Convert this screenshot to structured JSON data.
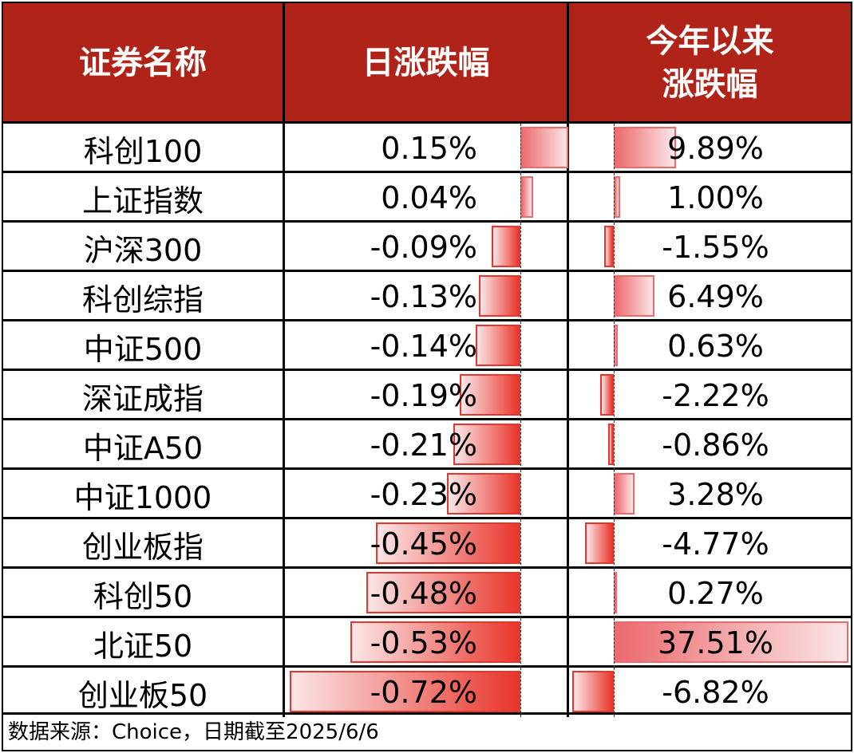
{
  "header": {
    "col_name": "证券名称",
    "col_daily": "日涨跌幅",
    "col_ytd_line1": "今年以来",
    "col_ytd_line2": "涨跌幅"
  },
  "colors": {
    "header_bg": "#af2318",
    "header_text": "#ffffff",
    "bar_positive": "#ec6a6e",
    "bar_negative": "#e8352b"
  },
  "rows": [
    {
      "name": "科创100",
      "daily": "0.15%",
      "daily_num": 0.15,
      "ytd": "9.89%",
      "ytd_num": 9.89
    },
    {
      "name": "上证指数",
      "daily": "0.04%",
      "daily_num": 0.04,
      "ytd": "1.00%",
      "ytd_num": 1.0
    },
    {
      "name": "沪深300",
      "daily": "-0.09%",
      "daily_num": -0.09,
      "ytd": "-1.55%",
      "ytd_num": -1.55
    },
    {
      "name": "科创综指",
      "daily": "-0.13%",
      "daily_num": -0.13,
      "ytd": "6.49%",
      "ytd_num": 6.49
    },
    {
      "name": "中证500",
      "daily": "-0.14%",
      "daily_num": -0.14,
      "ytd": "0.63%",
      "ytd_num": 0.63
    },
    {
      "name": "深证成指",
      "daily": "-0.19%",
      "daily_num": -0.19,
      "ytd": "-2.22%",
      "ytd_num": -2.22
    },
    {
      "name": "中证A50",
      "daily": "-0.21%",
      "daily_num": -0.21,
      "ytd": "-0.86%",
      "ytd_num": -0.86
    },
    {
      "name": "中证1000",
      "daily": "-0.23%",
      "daily_num": -0.23,
      "ytd": "3.28%",
      "ytd_num": 3.28
    },
    {
      "name": "创业板指",
      "daily": "-0.45%",
      "daily_num": -0.45,
      "ytd": "-4.77%",
      "ytd_num": -4.77
    },
    {
      "name": "科创50",
      "daily": "-0.48%",
      "daily_num": -0.48,
      "ytd": "0.27%",
      "ytd_num": 0.27
    },
    {
      "name": "北证50",
      "daily": "-0.53%",
      "daily_num": -0.53,
      "ytd": "37.51%",
      "ytd_num": 37.51
    },
    {
      "name": "创业板50",
      "daily": "-0.72%",
      "daily_num": -0.72,
      "ytd": "-6.82%",
      "ytd_num": -6.82
    }
  ],
  "footer": {
    "source_note": "数据来源：Choice，日期截至2025/6/6"
  },
  "chart_data": {
    "type": "table",
    "title": "",
    "columns": [
      "证券名称",
      "日涨跌幅",
      "今年以来涨跌幅"
    ],
    "categories": [
      "科创100",
      "上证指数",
      "沪深300",
      "科创综指",
      "中证500",
      "深证成指",
      "中证A50",
      "中证1000",
      "创业板指",
      "科创50",
      "北证50",
      "创业板50"
    ],
    "series": [
      {
        "name": "日涨跌幅",
        "unit": "%",
        "values": [
          0.15,
          0.04,
          -0.09,
          -0.13,
          -0.14,
          -0.19,
          -0.21,
          -0.23,
          -0.45,
          -0.48,
          -0.53,
          -0.72
        ]
      },
      {
        "name": "今年以来涨跌幅",
        "unit": "%",
        "values": [
          9.89,
          1.0,
          -1.55,
          6.49,
          0.63,
          -2.22,
          -0.86,
          3.28,
          -4.77,
          0.27,
          37.51,
          -6.82
        ]
      }
    ],
    "note": "In-cell data bars: positive bars extend right from axis (lighter red), negative bars extend left (deeper red)",
    "source": "数据来源：Choice，日期截至2025/6/6"
  }
}
